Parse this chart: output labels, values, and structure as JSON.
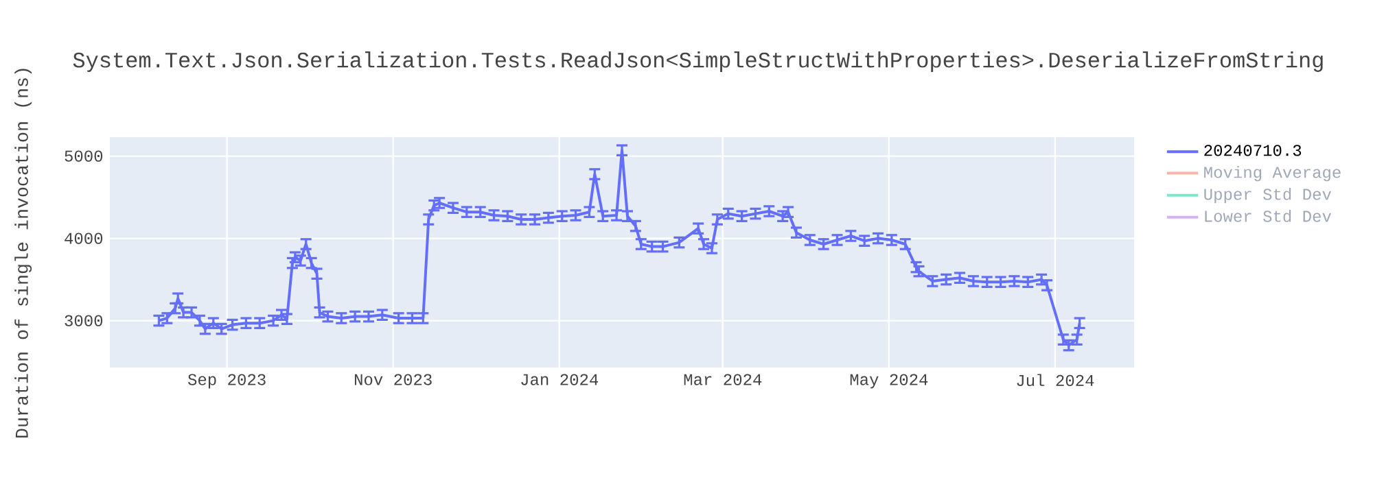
{
  "chart_data": {
    "type": "line",
    "title": "System.Text.Json.Serialization.Tests.ReadJson<SimpleStructWithProperties>.DeserializeFromString",
    "ylabel": "Duration of single invocation (ns)",
    "x": [
      "2023-08-07",
      "2023-08-10",
      "2023-08-13",
      "2023-08-14",
      "2023-08-16",
      "2023-08-19",
      "2023-08-22",
      "2023-08-24",
      "2023-08-27",
      "2023-08-30",
      "2023-09-03",
      "2023-09-08",
      "2023-09-13",
      "2023-09-18",
      "2023-09-21",
      "2023-09-23",
      "2023-09-25",
      "2023-09-26",
      "2023-09-28",
      "2023-09-30",
      "2023-10-02",
      "2023-10-04",
      "2023-10-05",
      "2023-10-08",
      "2023-10-13",
      "2023-10-18",
      "2023-10-23",
      "2023-10-28",
      "2023-11-03",
      "2023-11-08",
      "2023-11-12",
      "2023-11-14",
      "2023-11-16",
      "2023-11-18",
      "2023-11-23",
      "2023-11-28",
      "2023-12-03",
      "2023-12-08",
      "2023-12-13",
      "2023-12-18",
      "2023-12-23",
      "2023-12-28",
      "2024-01-02",
      "2024-01-07",
      "2024-01-12",
      "2024-01-14",
      "2024-01-17",
      "2024-01-22",
      "2024-01-24",
      "2024-01-26",
      "2024-01-29",
      "2024-01-31",
      "2024-02-04",
      "2024-02-08",
      "2024-02-14",
      "2024-02-21",
      "2024-02-23",
      "2024-02-26",
      "2024-02-28",
      "2024-03-03",
      "2024-03-08",
      "2024-03-13",
      "2024-03-18",
      "2024-03-23",
      "2024-03-25",
      "2024-03-28",
      "2024-04-02",
      "2024-04-07",
      "2024-04-12",
      "2024-04-17",
      "2024-04-22",
      "2024-04-27",
      "2024-05-02",
      "2024-05-07",
      "2024-05-11",
      "2024-05-12",
      "2024-05-17",
      "2024-05-22",
      "2024-05-27",
      "2024-06-01",
      "2024-06-06",
      "2024-06-11",
      "2024-06-16",
      "2024-06-21",
      "2024-06-26",
      "2024-06-28",
      "2024-07-04",
      "2024-07-06",
      "2024-07-09",
      "2024-07-10"
    ],
    "series": [
      {
        "name": "20240710.3",
        "color": "#636efa",
        "values": [
          3000,
          3030,
          3150,
          3270,
          3100,
          3100,
          3000,
          2900,
          2970,
          2900,
          2950,
          2970,
          2970,
          3000,
          3070,
          3020,
          3700,
          3770,
          3730,
          3930,
          3700,
          3570,
          3100,
          3050,
          3030,
          3050,
          3050,
          3070,
          3030,
          3030,
          3030,
          4230,
          4400,
          4430,
          4370,
          4320,
          4320,
          4280,
          4270,
          4230,
          4230,
          4250,
          4270,
          4280,
          4320,
          4780,
          4270,
          4280,
          5070,
          4270,
          4150,
          3930,
          3900,
          3900,
          3950,
          4120,
          3930,
          3880,
          4230,
          4300,
          4270,
          4300,
          4330,
          4270,
          4320,
          4070,
          3980,
          3930,
          3980,
          4030,
          3970,
          4000,
          3980,
          3930,
          3650,
          3600,
          3480,
          3500,
          3520,
          3480,
          3470,
          3470,
          3480,
          3470,
          3500,
          3430,
          2770,
          2700,
          2770,
          2970
        ],
        "errors": [
          60,
          60,
          60,
          60,
          60,
          60,
          60,
          60,
          60,
          60,
          60,
          60,
          60,
          60,
          60,
          60,
          60,
          60,
          60,
          60,
          60,
          60,
          60,
          60,
          60,
          60,
          60,
          60,
          60,
          60,
          60,
          60,
          60,
          60,
          60,
          60,
          60,
          60,
          60,
          60,
          60,
          60,
          60,
          60,
          60,
          60,
          60,
          60,
          60,
          60,
          60,
          60,
          60,
          60,
          60,
          60,
          60,
          60,
          60,
          60,
          60,
          60,
          60,
          60,
          60,
          60,
          60,
          60,
          60,
          60,
          60,
          60,
          60,
          60,
          60,
          60,
          60,
          60,
          60,
          60,
          60,
          60,
          60,
          60,
          60,
          60,
          60,
          60,
          60,
          60
        ]
      },
      {
        "name": "Moving Average",
        "color": "#f7b6a8",
        "values": [
          null,
          null,
          null,
          null,
          null,
          null,
          null,
          null,
          null,
          null,
          null,
          null,
          null,
          null,
          null,
          null,
          null,
          null,
          null,
          null,
          null,
          null,
          null,
          null,
          null,
          null,
          null,
          null,
          null,
          null,
          null,
          null,
          null,
          null,
          null,
          null,
          null,
          null,
          null,
          null,
          null,
          null,
          null,
          null,
          null,
          null,
          null,
          null,
          null,
          null,
          null,
          null,
          null,
          null,
          null,
          null,
          null,
          null,
          null,
          null,
          null,
          null,
          null,
          null,
          null,
          null,
          null,
          null,
          null,
          null,
          null,
          null,
          null,
          null,
          null,
          null,
          null,
          null,
          null,
          null,
          null,
          null,
          null,
          null,
          null,
          null,
          null,
          null,
          null,
          null
        ]
      },
      {
        "name": "Upper Std Dev",
        "color": "#80e6cb",
        "values": [
          null,
          null,
          null,
          null,
          null,
          null,
          null,
          null,
          null,
          null,
          null,
          null,
          null,
          null,
          null,
          null,
          null,
          null,
          null,
          null,
          null,
          null,
          null,
          null,
          null,
          null,
          null,
          null,
          null,
          null,
          null,
          null,
          null,
          null,
          null,
          null,
          null,
          null,
          null,
          null,
          null,
          null,
          null,
          null,
          null,
          null,
          null,
          null,
          null,
          null,
          null,
          null,
          null,
          null,
          null,
          null,
          null,
          null,
          null,
          null,
          null,
          null,
          null,
          null,
          null,
          null,
          null,
          null,
          null,
          null,
          null,
          null,
          null,
          null,
          null,
          null,
          null,
          null,
          null,
          null,
          null,
          null,
          null,
          null,
          null,
          null,
          null,
          null,
          null,
          null
        ]
      },
      {
        "name": "Lower Std Dev",
        "color": "#d5b1fd",
        "values": [
          null,
          null,
          null,
          null,
          null,
          null,
          null,
          null,
          null,
          null,
          null,
          null,
          null,
          null,
          null,
          null,
          null,
          null,
          null,
          null,
          null,
          null,
          null,
          null,
          null,
          null,
          null,
          null,
          null,
          null,
          null,
          null,
          null,
          null,
          null,
          null,
          null,
          null,
          null,
          null,
          null,
          null,
          null,
          null,
          null,
          null,
          null,
          null,
          null,
          null,
          null,
          null,
          null,
          null,
          null,
          null,
          null,
          null,
          null,
          null,
          null,
          null,
          null,
          null,
          null,
          null,
          null,
          null,
          null,
          null,
          null,
          null,
          null,
          null,
          null,
          null,
          null,
          null,
          null,
          null,
          null,
          null,
          null,
          null,
          null,
          null,
          null,
          null,
          null,
          null
        ]
      }
    ],
    "xlim": [
      "2023-07-20",
      "2024-07-30"
    ],
    "xticks": [
      {
        "value": "2023-09-01",
        "label": "Sep 2023"
      },
      {
        "value": "2023-11-01",
        "label": "Nov 2023"
      },
      {
        "value": "2024-01-01",
        "label": "Jan 2024"
      },
      {
        "value": "2024-03-01",
        "label": "Mar 2024"
      },
      {
        "value": "2024-05-01",
        "label": "May 2024"
      },
      {
        "value": "2024-07-01",
        "label": "Jul 2024"
      }
    ],
    "ylim": [
      2430,
      5230
    ],
    "yticks": [
      3000,
      4000,
      5000
    ],
    "grid": true,
    "legend": "right",
    "marker": "none",
    "line_style": "solid"
  }
}
